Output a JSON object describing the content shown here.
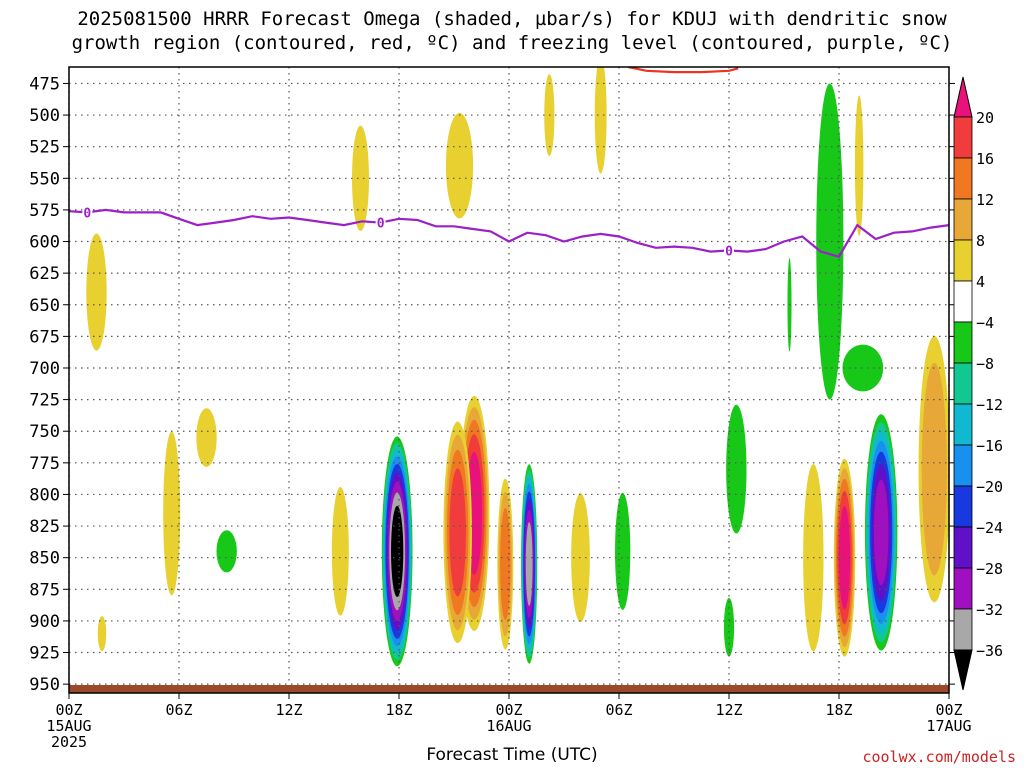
{
  "title": {
    "line1": "2025081500 HRRR Forecast Omega (shaded, µbar/s) for KDUJ with dendritic snow",
    "line2": "growth region (contoured, red, ºC) and freezing level (contoured, purple, ºC)"
  },
  "xlabel": "Forecast Time (UTC)",
  "credit": "coolwx.com/models",
  "colors": {
    "freezing_line": "#9c20c8",
    "dendritic_line": "#ee3322",
    "terrain": "#9a4a2a",
    "grid": "#555555"
  },
  "chart_data": {
    "type": "heatmap",
    "title": "2025081500 HRRR Forecast Omega (shaded, µbar/s) for KDUJ with dendritic snow growth region (contoured, red, ºC) and freezing level (contoured, purple, ºC)",
    "xlabel": "Forecast Time (UTC)",
    "ylabel": "",
    "x_hours_range": [
      0,
      48
    ],
    "y_pressure_range": [
      462,
      957
    ],
    "x_ticks": [
      {
        "hour": 0,
        "label": "00Z",
        "sub": "15AUG",
        "sub2": "2025"
      },
      {
        "hour": 6,
        "label": "06Z"
      },
      {
        "hour": 12,
        "label": "12Z"
      },
      {
        "hour": 18,
        "label": "18Z"
      },
      {
        "hour": 24,
        "label": "00Z",
        "sub": "16AUG"
      },
      {
        "hour": 30,
        "label": "06Z"
      },
      {
        "hour": 36,
        "label": "12Z"
      },
      {
        "hour": 42,
        "label": "18Z"
      },
      {
        "hour": 48,
        "label": "00Z",
        "sub": "17AUG"
      }
    ],
    "y_ticks": [
      475,
      500,
      525,
      550,
      575,
      600,
      625,
      650,
      675,
      700,
      725,
      750,
      775,
      800,
      825,
      850,
      875,
      900,
      925,
      950
    ],
    "grid": true,
    "colorbar": {
      "labels": [
        "20",
        "16",
        "12",
        "8",
        "4",
        "−4",
        "−8",
        "−12",
        "−16",
        "−20",
        "−24",
        "−28",
        "−32",
        "−36"
      ],
      "bins": [
        {
          "from": 20,
          "to": 24,
          "color": "#e8127a"
        },
        {
          "from": 16,
          "to": 20,
          "color": "#f03c3c"
        },
        {
          "from": 12,
          "to": 16,
          "color": "#f07820"
        },
        {
          "from": 8,
          "to": 12,
          "color": "#e8a838"
        },
        {
          "from": 4,
          "to": 8,
          "color": "#e8d030"
        },
        {
          "from": -4,
          "to": 4,
          "color": "#ffffff"
        },
        {
          "from": -8,
          "to": -4,
          "color": "#18c818"
        },
        {
          "from": -12,
          "to": -8,
          "color": "#10c890"
        },
        {
          "from": -16,
          "to": -12,
          "color": "#10b8d0"
        },
        {
          "from": -20,
          "to": -16,
          "color": "#1890f0"
        },
        {
          "from": -24,
          "to": -20,
          "color": "#1838e0"
        },
        {
          "from": -28,
          "to": -24,
          "color": "#6010c8"
        },
        {
          "from": -32,
          "to": -28,
          "color": "#a010c0"
        },
        {
          "from": -36,
          "to": -32,
          "color": "#a8a8a8"
        },
        {
          "from": -40,
          "to": -36,
          "color": "#000000"
        }
      ]
    },
    "freezing_level": {
      "contour_label": "0",
      "hours": [
        0,
        1,
        2,
        3,
        4,
        5,
        6,
        7,
        8,
        9,
        10,
        11,
        12,
        13,
        14,
        15,
        16,
        17,
        18,
        19,
        20,
        21,
        22,
        23,
        24,
        25,
        26,
        27,
        28,
        29,
        30,
        31,
        32,
        33,
        34,
        35,
        36,
        37,
        38,
        39,
        40,
        41,
        42,
        43,
        44,
        45,
        46,
        47,
        48
      ],
      "pressure": [
        576,
        577,
        575,
        577,
        577,
        577,
        582,
        587,
        585,
        583,
        580,
        582,
        581,
        583,
        585,
        587,
        584,
        585,
        582,
        583,
        588,
        588,
        590,
        592,
        600,
        593,
        595,
        600,
        596,
        594,
        596,
        601,
        605,
        604,
        605,
        608,
        607,
        608,
        606,
        600,
        596,
        608,
        612,
        587,
        598,
        593,
        592,
        589,
        587
      ],
      "label_hours": [
        1,
        17,
        36
      ]
    },
    "dendritic_region": {
      "contour_hours": [
        30.5,
        31.5,
        33,
        34.5,
        36,
        36.5
      ],
      "contour_pressure": [
        462,
        465,
        466,
        466,
        465,
        463
      ]
    },
    "omega_features": [
      {
        "h": 17.9,
        "p": 845,
        "rh": 0.85,
        "rp": 92,
        "value": -38
      },
      {
        "h": 22.1,
        "p": 815,
        "rh": 0.85,
        "rp": 95,
        "value": 22
      },
      {
        "h": 21.2,
        "p": 830,
        "rh": 0.8,
        "rp": 90,
        "value": 18
      },
      {
        "h": 23.8,
        "p": 855,
        "rh": 0.45,
        "rp": 70,
        "value": 14
      },
      {
        "h": 25.1,
        "p": 855,
        "rh": 0.45,
        "rp": 80,
        "value": -34
      },
      {
        "h": 42.3,
        "p": 850,
        "rh": 0.6,
        "rp": 80,
        "value": 22
      },
      {
        "h": 44.3,
        "p": 830,
        "rh": 0.9,
        "rp": 95,
        "value": -30
      },
      {
        "h": 47.2,
        "p": 780,
        "rh": 0.9,
        "rp": 110,
        "value": 11
      },
      {
        "h": 41.5,
        "p": 600,
        "rh": 0.8,
        "rp": 135,
        "value": -6
      },
      {
        "h": 43.3,
        "p": 700,
        "rh": 1.2,
        "rp": 20,
        "value": -6
      },
      {
        "h": 36.4,
        "p": 780,
        "rh": 0.6,
        "rp": 55,
        "value": -6
      },
      {
        "h": 36,
        "p": 905,
        "rh": 0.3,
        "rp": 25,
        "value": -6
      },
      {
        "h": 30.2,
        "p": 845,
        "rh": 0.45,
        "rp": 50,
        "value": -6
      },
      {
        "h": 8.6,
        "p": 845,
        "rh": 0.6,
        "rp": 18,
        "value": -6
      },
      {
        "h": 39.3,
        "p": 650,
        "rh": 0.12,
        "rp": 40,
        "value": -6
      },
      {
        "h": 15.9,
        "p": 550,
        "rh": 0.5,
        "rp": 45,
        "value": 6
      },
      {
        "h": 21.3,
        "p": 540,
        "rh": 0.8,
        "rp": 45,
        "value": 6
      },
      {
        "h": 1.5,
        "p": 640,
        "rh": 0.6,
        "rp": 50,
        "value": 6
      },
      {
        "h": 29,
        "p": 500,
        "rh": 0.35,
        "rp": 50,
        "value": 6
      },
      {
        "h": 26.2,
        "p": 500,
        "rh": 0.3,
        "rp": 35,
        "value": 6
      },
      {
        "h": 5.6,
        "p": 815,
        "rh": 0.5,
        "rp": 70,
        "value": 6
      },
      {
        "h": 7.5,
        "p": 755,
        "rh": 0.6,
        "rp": 25,
        "value": 6
      },
      {
        "h": 14.8,
        "p": 845,
        "rh": 0.5,
        "rp": 55,
        "value": 6
      },
      {
        "h": 27.9,
        "p": 850,
        "rh": 0.55,
        "rp": 55,
        "value": 6
      },
      {
        "h": 40.6,
        "p": 850,
        "rh": 0.6,
        "rp": 80,
        "value": 6
      },
      {
        "h": 1.8,
        "p": 910,
        "rh": 0.25,
        "rp": 15,
        "value": 6
      },
      {
        "h": 43.1,
        "p": 540,
        "rh": 0.25,
        "rp": 60,
        "value": 6
      }
    ],
    "terrain_surface_pressure": 957
  }
}
